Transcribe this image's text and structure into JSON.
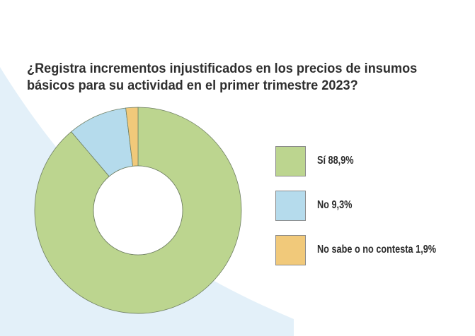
{
  "colors": {
    "background_accent": "#e3f0f9",
    "si": "#bcd58f",
    "no": "#b5dbec",
    "nsnc": "#f1c97a",
    "stroke": "#6f7f63"
  },
  "chart_data": {
    "type": "donut",
    "title": "¿Registra incrementos injustificados en los precios de insumos básicos para su actividad en el primer trimestre 2023?",
    "title_lines": [
      "¿Registra incrementos injustificados en los precios de insumos",
      "básicos para su actividad en el primer trimestre 2023?"
    ],
    "unit": "%",
    "legend_position": "right",
    "slices": [
      {
        "label": "Sí 88,9%",
        "name": "Sí",
        "value": 88.9,
        "color": "#bcd58f"
      },
      {
        "label": "No 9,3%",
        "name": "No",
        "value": 9.3,
        "color": "#b5dbec"
      },
      {
        "label": "No sabe o no contesta 1,9%",
        "name": "No sabe o no contesta",
        "value": 1.9,
        "color": "#f1c97a"
      }
    ]
  }
}
